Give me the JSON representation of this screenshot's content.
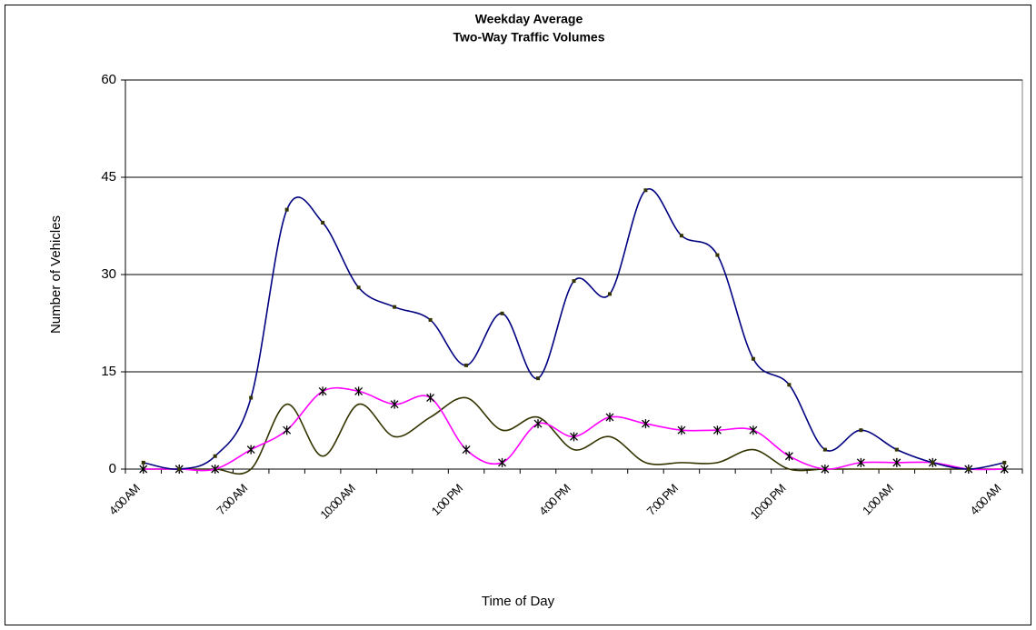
{
  "chart_data": {
    "type": "line",
    "title": [
      "Weekday Average",
      "Two-Way Traffic Volumes"
    ],
    "y_label": "Number of Vehicles",
    "x_label": "Time of Day",
    "categories": [
      "4:00 AM",
      null,
      null,
      "7:00 AM",
      null,
      null,
      "10:00 AM",
      null,
      null,
      "1:00 PM",
      null,
      null,
      "4:00 PM",
      null,
      null,
      "7:00 PM",
      null,
      null,
      "10:00 PM",
      null,
      null,
      "1:00 AM",
      null,
      null,
      "4:00 AM"
    ],
    "ylim": [
      0,
      60
    ],
    "yticks": [
      0,
      15,
      30,
      45,
      60
    ],
    "grid": true,
    "smooth": true,
    "series": [
      {
        "color": "#000080",
        "marker": "dot",
        "values": [
          1,
          0,
          2,
          11,
          40,
          38,
          28,
          25,
          23,
          16,
          24,
          14,
          29,
          27,
          43,
          36,
          33,
          17,
          13,
          3,
          6,
          3,
          1,
          0,
          1
        ]
      },
      {
        "color": "#ff00ff",
        "marker": "asterisk",
        "values": [
          0,
          0,
          0,
          3,
          6,
          12,
          12,
          10,
          11,
          3,
          1,
          7,
          5,
          8,
          7,
          6,
          6,
          6,
          2,
          0,
          1,
          1,
          1,
          0,
          0
        ]
      },
      {
        "color": "#333300",
        "marker": "none",
        "values": [
          0,
          0,
          0,
          0,
          10,
          2,
          10,
          5,
          8,
          11,
          6,
          8,
          3,
          5,
          1,
          1,
          1,
          3,
          0,
          0,
          0,
          0,
          0,
          0,
          0
        ]
      }
    ]
  }
}
